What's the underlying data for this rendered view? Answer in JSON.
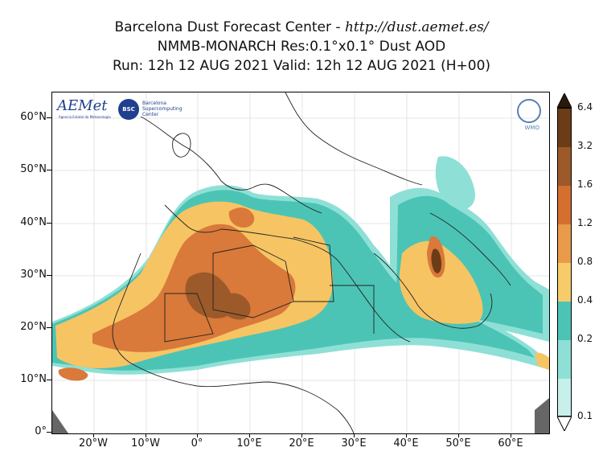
{
  "header": {
    "line1_prefix": "Barcelona Dust Forecast Center - ",
    "line1_url": "http://dust.aemet.es/",
    "line2": "NMMB-MONARCH   Res:0.1°x0.1°   Dust AOD",
    "line3": "Run: 12h 12 AUG 2021   Valid: 12h 12 AUG 2021 (H+00)"
  },
  "logos": {
    "aemet": "AEMet",
    "aemet_sub": "Agencia Estatal de Meteorología",
    "bsc": "BSC",
    "bsc_text_1": "Barcelona",
    "bsc_text_2": "Supercomputing",
    "bsc_text_3": "Center",
    "wmo": "WMO"
  },
  "axes": {
    "y_labels": [
      "60°N",
      "50°N",
      "40°N",
      "30°N",
      "20°N",
      "10°N",
      "0°"
    ],
    "x_labels": [
      "20°W",
      "10°W",
      "0°",
      "10°E",
      "20°E",
      "30°E",
      "40°E",
      "50°E",
      "60°E"
    ]
  },
  "colorbar": {
    "labels": [
      "6.4",
      "3.2",
      "1.6",
      "1.2",
      "0.8",
      "0.4",
      "0.2",
      "0.1"
    ],
    "colors": [
      "#6b3d17",
      "#9c5a2a",
      "#d46f2f",
      "#e99a4a",
      "#f6cc6b",
      "#4cc4b5",
      "#8ee0d6",
      "#c8f0ea"
    ]
  },
  "colors": {
    "low": "#8ee0d6",
    "mid_low": "#4cc4b5",
    "mid": "#f7c463",
    "high": "#d9793a",
    "very_high": "#9c5a2a",
    "extreme": "#6b3d17",
    "coast": "#222222",
    "grid": "#d9d9d9"
  }
}
